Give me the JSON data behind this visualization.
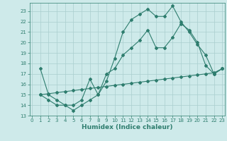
{
  "line1_x": [
    1,
    2,
    3,
    4,
    5,
    6,
    7,
    8,
    9,
    10,
    11,
    12,
    13,
    14,
    15,
    16,
    17,
    18,
    19,
    20,
    21,
    22,
    23
  ],
  "line1_y": [
    17.5,
    15.0,
    14.5,
    14.0,
    13.5,
    14.0,
    14.5,
    15.0,
    16.3,
    18.5,
    21.0,
    22.2,
    22.7,
    23.2,
    22.5,
    22.5,
    23.5,
    22.0,
    21.0,
    19.8,
    18.8,
    17.0,
    17.5
  ],
  "line2_x": [
    1,
    2,
    3,
    4,
    5,
    6,
    7,
    8,
    9,
    10,
    11,
    12,
    13,
    14,
    15,
    16,
    17,
    18,
    19,
    20,
    21,
    22,
    23
  ],
  "line2_y": [
    15.0,
    14.5,
    14.0,
    14.0,
    14.0,
    14.5,
    16.5,
    15.0,
    17.0,
    17.5,
    18.8,
    19.5,
    20.2,
    21.2,
    19.5,
    19.5,
    20.5,
    21.8,
    21.2,
    20.0,
    17.8,
    17.0,
    17.5
  ],
  "line3_x": [
    1,
    2,
    3,
    4,
    5,
    6,
    7,
    8,
    9,
    10,
    11,
    12,
    13,
    14,
    15,
    16,
    17,
    18,
    19,
    20,
    21,
    22,
    23
  ],
  "line3_y": [
    15.0,
    15.1,
    15.2,
    15.3,
    15.4,
    15.5,
    15.6,
    15.7,
    15.8,
    15.9,
    16.0,
    16.1,
    16.2,
    16.3,
    16.4,
    16.5,
    16.6,
    16.7,
    16.8,
    16.9,
    17.0,
    17.1,
    17.5
  ],
  "color": "#2e7d6e",
  "bg_color": "#ceeaea",
  "grid_color": "#aacece",
  "xlabel": "Humidex (Indice chaleur)",
  "ylim": [
    13,
    23.8
  ],
  "xlim": [
    -0.3,
    23.3
  ],
  "yticks": [
    13,
    14,
    15,
    16,
    17,
    18,
    19,
    20,
    21,
    22,
    23
  ],
  "xticks": [
    0,
    1,
    2,
    3,
    4,
    5,
    6,
    7,
    8,
    9,
    10,
    11,
    12,
    13,
    14,
    15,
    16,
    17,
    18,
    19,
    20,
    21,
    22,
    23
  ],
  "marker": "D",
  "markersize": 2.0,
  "linewidth": 0.8,
  "xlabel_fontsize": 6.5,
  "tick_fontsize": 5.0
}
